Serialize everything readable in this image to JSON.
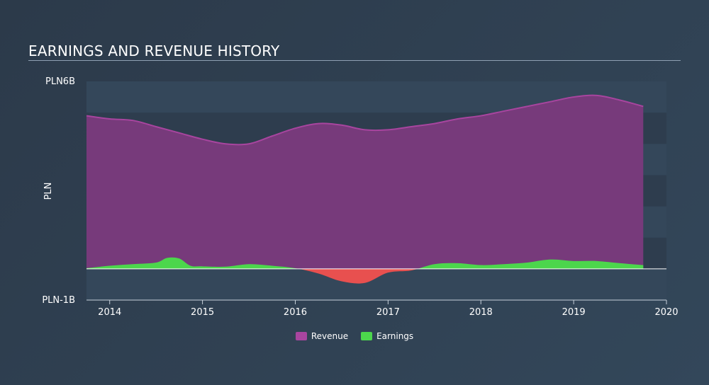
{
  "title": "EARNINGS AND REVENUE HISTORY",
  "colors": {
    "revenue": "#7b3a7d",
    "revenue_line": "#a8459f",
    "earnings_positive": "#4cd64c",
    "earnings_negative": "#e8504f",
    "band_dark": "#2e3d4e",
    "band_light": "#34475a",
    "zero_line": "#ffffff"
  },
  "chart_data": {
    "type": "area",
    "title": "EARNINGS AND REVENUE HISTORY",
    "xlabel": "",
    "ylabel": "PLN",
    "y_tick_labels": [
      "PLN6B",
      "PLN-1B"
    ],
    "ylim": [
      -1,
      6
    ],
    "xlim": [
      2013.75,
      2020
    ],
    "x_ticks": [
      2014,
      2015,
      2016,
      2017,
      2018,
      2019,
      2020
    ],
    "x_tick_labels": [
      "2014",
      "2015",
      "2016",
      "2017",
      "2018",
      "2019",
      "2020"
    ],
    "legend_position": "bottom-center",
    "series": [
      {
        "name": "Revenue",
        "x": [
          2013.75,
          2014.0,
          2014.25,
          2014.5,
          2014.75,
          2015.0,
          2015.25,
          2015.5,
          2015.75,
          2016.0,
          2016.25,
          2016.5,
          2016.75,
          2017.0,
          2017.25,
          2017.5,
          2017.75,
          2018.0,
          2018.25,
          2018.5,
          2018.75,
          2019.0,
          2019.25,
          2019.5,
          2019.75
        ],
        "values": [
          4.9,
          4.8,
          4.75,
          4.55,
          4.35,
          4.15,
          4.0,
          4.0,
          4.25,
          4.5,
          4.65,
          4.6,
          4.45,
          4.45,
          4.55,
          4.65,
          4.8,
          4.9,
          5.05,
          5.2,
          5.35,
          5.5,
          5.55,
          5.4,
          5.2
        ]
      },
      {
        "name": "Earnings",
        "x": [
          2013.75,
          2014.0,
          2014.25,
          2014.5,
          2014.62,
          2014.75,
          2014.87,
          2015.0,
          2015.25,
          2015.5,
          2015.75,
          2016.0,
          2016.25,
          2016.5,
          2016.75,
          2017.0,
          2017.25,
          2017.5,
          2017.75,
          2018.0,
          2018.25,
          2018.5,
          2018.75,
          2019.0,
          2019.25,
          2019.5,
          2019.75
        ],
        "values": [
          0.02,
          0.1,
          0.15,
          0.2,
          0.35,
          0.33,
          0.1,
          0.08,
          0.07,
          0.15,
          0.1,
          0.02,
          -0.15,
          -0.4,
          -0.45,
          -0.12,
          -0.05,
          0.15,
          0.18,
          0.12,
          0.15,
          0.2,
          0.3,
          0.25,
          0.25,
          0.18,
          0.12
        ]
      }
    ]
  },
  "legend": {
    "revenue_label": "Revenue",
    "earnings_label": "Earnings"
  }
}
